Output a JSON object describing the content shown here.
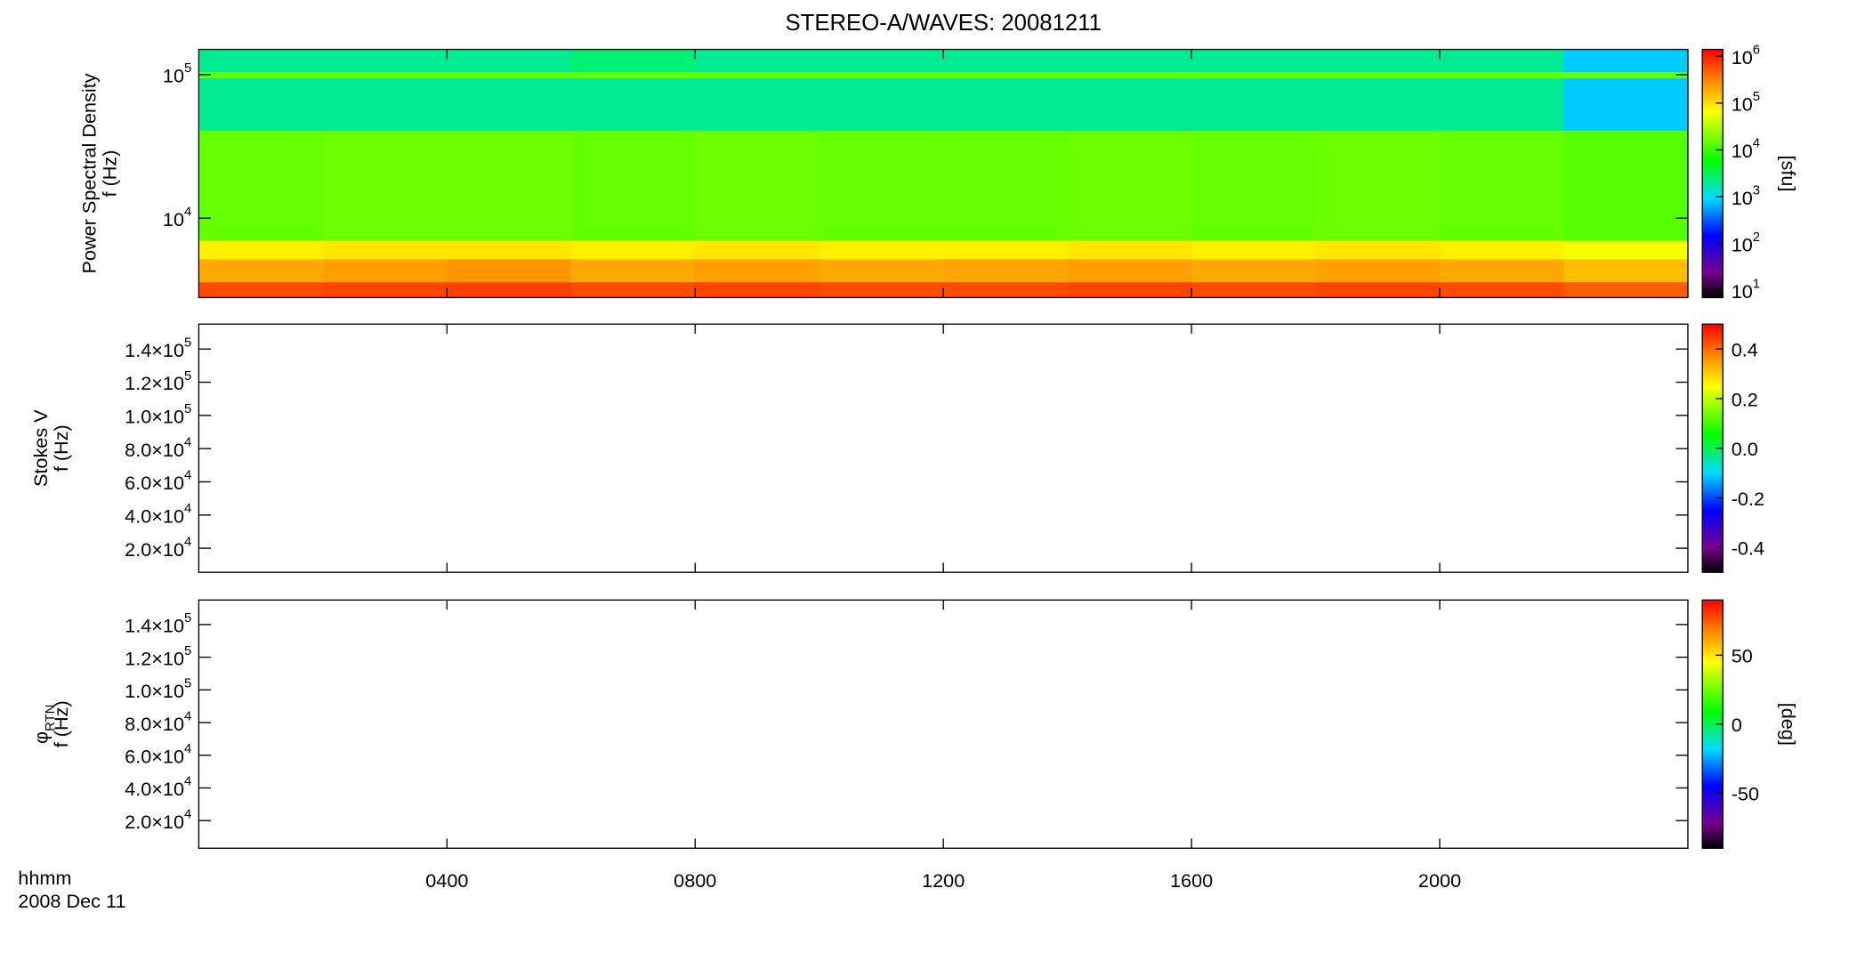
{
  "chart_data": [
    {
      "type": "heatmap",
      "title": "STEREO-A/WAVES: 20081211",
      "ylabel": [
        "Power Spectral Density",
        "f (Hz)"
      ],
      "ylog": true,
      "ylim": [
        2800,
        150000
      ],
      "yticks": [
        {
          "value": 10000,
          "label": "10^4"
        },
        {
          "value": 100000,
          "label": "10^5"
        }
      ],
      "xlim": [
        0,
        24
      ],
      "xticks": [
        4,
        8,
        12,
        16,
        20
      ],
      "x_edges": [
        0,
        2,
        4,
        6,
        8,
        10,
        12,
        14,
        16,
        18,
        20,
        22,
        24
      ],
      "y_edges": [
        2800,
        3600,
        5200,
        7000,
        41000,
        95000,
        105000,
        150000
      ],
      "z": [
        [
          600000,
          650000,
          700000,
          600000,
          650000,
          600000,
          600000,
          650000,
          600000,
          650000,
          600000,
          500000
        ],
        [
          200000,
          220000,
          250000,
          200000,
          220000,
          200000,
          210000,
          220000,
          200000,
          220000,
          200000,
          150000
        ],
        [
          80000,
          90000,
          90000,
          80000,
          90000,
          80000,
          80000,
          90000,
          80000,
          90000,
          80000,
          60000
        ],
        [
          15000,
          16000,
          16000,
          15000,
          16000,
          15000,
          15000,
          16000,
          15000,
          16000,
          15000,
          13000
        ],
        [
          2000,
          2000,
          2000,
          2000,
          2000,
          2000,
          2000,
          2000,
          2000,
          2000,
          2000,
          800
        ],
        [
          15000,
          15000,
          15000,
          15000,
          15000,
          15000,
          15000,
          15000,
          15000,
          15000,
          15000,
          15000
        ],
        [
          2000,
          2000,
          2000,
          2500,
          2000,
          2000,
          2000,
          2000,
          2000,
          2000,
          2000,
          800
        ]
      ],
      "colormap": "rainbow",
      "colorbar": {
        "label": "[sfu]",
        "log": true,
        "lim": [
          7,
          1400000
        ],
        "ticks": [
          {
            "value": 10,
            "label": "10^1"
          },
          {
            "value": 100,
            "label": "10^2"
          },
          {
            "value": 1000,
            "label": "10^3"
          },
          {
            "value": 10000,
            "label": "10^4"
          },
          {
            "value": 100000,
            "label": "10^5"
          },
          {
            "value": 1000000,
            "label": "10^6"
          }
        ]
      }
    },
    {
      "type": "heatmap",
      "ylabel": [
        "Stokes V",
        "f (Hz)"
      ],
      "ylog": false,
      "ylim": [
        5500,
        155000
      ],
      "yticks": [
        {
          "value": 20000,
          "label": "2.0×10^4"
        },
        {
          "value": 40000,
          "label": "4.0×10^4"
        },
        {
          "value": 60000,
          "label": "6.0×10^4"
        },
        {
          "value": 80000,
          "label": "8.0×10^4"
        },
        {
          "value": 100000,
          "label": "1.0×10^5"
        },
        {
          "value": 120000,
          "label": "1.2×10^5"
        },
        {
          "value": 140000,
          "label": "1.4×10^5"
        }
      ],
      "xlim": [
        0,
        24
      ],
      "xticks": [
        4,
        8,
        12,
        16,
        20
      ],
      "colormap": "rainbow",
      "colorbar": {
        "log": false,
        "lim": [
          -0.5,
          0.5
        ],
        "ticks": [
          -0.4,
          -0.2,
          {
            "value": 0,
            "label": "0.0"
          },
          0.2,
          0.4
        ]
      }
    },
    {
      "type": "heatmap",
      "ylabel": [
        "φ_RTN",
        "f (Hz)"
      ],
      "ylog": false,
      "ylim": [
        3100,
        155000
      ],
      "yticks": [
        {
          "value": 20000,
          "label": "2.0×10^4"
        },
        {
          "value": 40000,
          "label": "4.0×10^4"
        },
        {
          "value": 60000,
          "label": "6.0×10^4"
        },
        {
          "value": 80000,
          "label": "8.0×10^4"
        },
        {
          "value": 100000,
          "label": "1.0×10^5"
        },
        {
          "value": 120000,
          "label": "1.2×10^5"
        },
        {
          "value": 140000,
          "label": "1.4×10^5"
        }
      ],
      "xlim": [
        0,
        24
      ],
      "xticks": [
        {
          "value": 4,
          "label": "0400"
        },
        {
          "value": 8,
          "label": "0800"
        },
        {
          "value": 12,
          "label": "1200"
        },
        {
          "value": 16,
          "label": "1600"
        },
        {
          "value": 20,
          "label": "2000"
        }
      ],
      "xlabel": [
        "hhmm",
        "2008 Dec 11"
      ],
      "colormap": "rainbow",
      "colorbar": {
        "label": "[deg]",
        "log": false,
        "lim": [
          -90,
          90
        ],
        "ticks": [
          -50,
          0,
          50
        ]
      }
    }
  ]
}
